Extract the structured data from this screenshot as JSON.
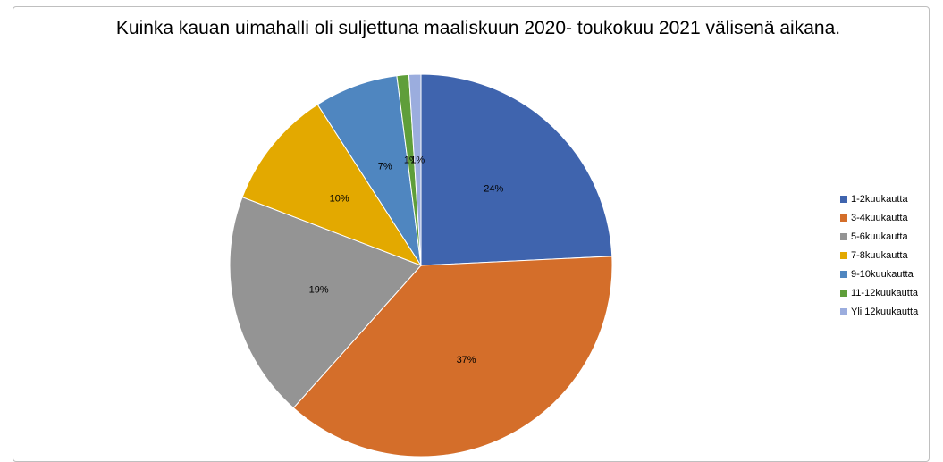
{
  "chart_data": {
    "type": "pie",
    "title": "Kuinka kauan uimahalli oli suljettuna maaliskuun 2020- toukokuu 2021 välisenä aikana.",
    "categories": [
      "1-2kuukautta",
      "3-4kuukautta",
      "5-6kuukautta",
      "7-8kuukautta",
      "9-10kuukautta",
      "11-12kuukautta",
      "Yli 12kuukautta"
    ],
    "values": [
      24,
      37,
      19,
      10,
      7,
      1,
      1
    ],
    "value_labels": [
      "24%",
      "37%",
      "19%",
      "10%",
      "7%",
      "1%",
      "1%"
    ],
    "colors": [
      "#3f64ae",
      "#d46e2a",
      "#949494",
      "#e3a900",
      "#4f86c0",
      "#5f9e3a",
      "#9badde"
    ],
    "legend": "right"
  }
}
